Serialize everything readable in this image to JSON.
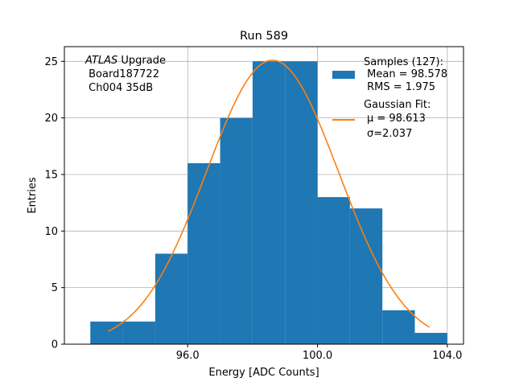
{
  "chart_data": {
    "type": "histogram",
    "title": "Run 589",
    "xlabel": "Energy [ADC Counts]",
    "ylabel": "Entries",
    "xlim": [
      92.2,
      104.5
    ],
    "ylim": [
      0,
      26.3
    ],
    "xticks": [
      96.0,
      100.0,
      104.0
    ],
    "xtick_labels": [
      "96.0",
      "100.0",
      "104.0"
    ],
    "yticks": [
      0,
      5,
      10,
      15,
      20,
      25
    ],
    "ytick_labels": [
      "0",
      "5",
      "10",
      "15",
      "20",
      "25"
    ],
    "grid": true,
    "bins": [
      {
        "x0": 93.0,
        "x1": 94.0,
        "count": 2
      },
      {
        "x0": 94.0,
        "x1": 95.0,
        "count": 2
      },
      {
        "x0": 95.0,
        "x1": 96.0,
        "count": 8
      },
      {
        "x0": 96.0,
        "x1": 97.0,
        "count": 16
      },
      {
        "x0": 97.0,
        "x1": 98.0,
        "count": 20
      },
      {
        "x0": 98.0,
        "x1": 99.0,
        "count": 25
      },
      {
        "x0": 99.0,
        "x1": 100.0,
        "count": 25
      },
      {
        "x0": 100.0,
        "x1": 101.0,
        "count": 13
      },
      {
        "x0": 101.0,
        "x1": 102.0,
        "count": 12
      },
      {
        "x0": 102.0,
        "x1": 103.0,
        "count": 3
      },
      {
        "x0": 103.0,
        "x1": 104.0,
        "count": 1
      }
    ],
    "fit": {
      "mu": 98.613,
      "sigma": 2.037,
      "amplitude": 25.1,
      "x_range": [
        93.55,
        103.45
      ]
    },
    "colors": {
      "bars": "#1f77b4",
      "fit": "#ff7f0e",
      "grid": "#b0b0b0"
    },
    "legend": {
      "placement": "top-right",
      "samples_label": "Samples (127):",
      "mean_label": " Mean = 98.578",
      "rms_label": " RMS = 1.975",
      "fit_label": "Gaussian Fit:",
      "mu_label": "μ = 98.613",
      "sigma_label": "σ=2.037"
    },
    "annotation": {
      "line1_italic": "ATLAS",
      "line1_rest": " Upgrade",
      "line2": " Board187722",
      "line3": " Ch004 35dB"
    }
  }
}
